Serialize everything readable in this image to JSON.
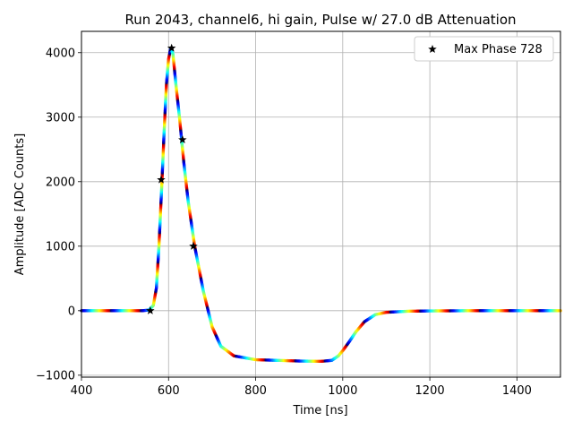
{
  "chart_data": {
    "type": "scatter",
    "title": "Run 2043, channel6, hi gain, Pulse w/ 27.0 dB Attenuation",
    "xlabel": "Time [ns]",
    "ylabel": "Amplitude [ADC Counts]",
    "xlim": [
      400,
      1500
    ],
    "ylim": [
      -1030,
      4330
    ],
    "xticks": [
      400,
      600,
      800,
      1000,
      1200,
      1400
    ],
    "xtick_labels": [
      "400",
      "600",
      "800",
      "1000",
      "1200",
      "1400"
    ],
    "yticks": [
      -1000,
      0,
      1000,
      2000,
      3000,
      4000
    ],
    "ytick_labels": [
      "−1000",
      "0",
      "1000",
      "2000",
      "3000",
      "4000"
    ],
    "grid": true,
    "legend": {
      "placement": "top-right",
      "entries": [
        "Max Phase 728"
      ]
    },
    "colormap": "jet",
    "pulse_curve": {
      "x": [
        400,
        540,
        555,
        565,
        572,
        578,
        585,
        590,
        595,
        600,
        605,
        610,
        617,
        625,
        635,
        645,
        660,
        680,
        700,
        720,
        750,
        800,
        850,
        900,
        950,
        975,
        990,
        1000,
        1015,
        1030,
        1050,
        1075,
        1100,
        1150,
        1200,
        1300,
        1400,
        1500
      ],
      "y": [
        0,
        0,
        10,
        80,
        350,
        1000,
        2030,
        2800,
        3500,
        3900,
        4070,
        3980,
        3500,
        3000,
        2300,
        1700,
        1000,
        300,
        -250,
        -550,
        -700,
        -760,
        -770,
        -780,
        -785,
        -770,
        -700,
        -620,
        -480,
        -330,
        -170,
        -60,
        -25,
        -8,
        -3,
        0,
        0,
        0
      ]
    },
    "max_phase_points": {
      "name": "Max Phase 728",
      "x": [
        558,
        583,
        607,
        632,
        657
      ],
      "y": [
        0,
        2030,
        4070,
        2650,
        1000
      ]
    }
  }
}
